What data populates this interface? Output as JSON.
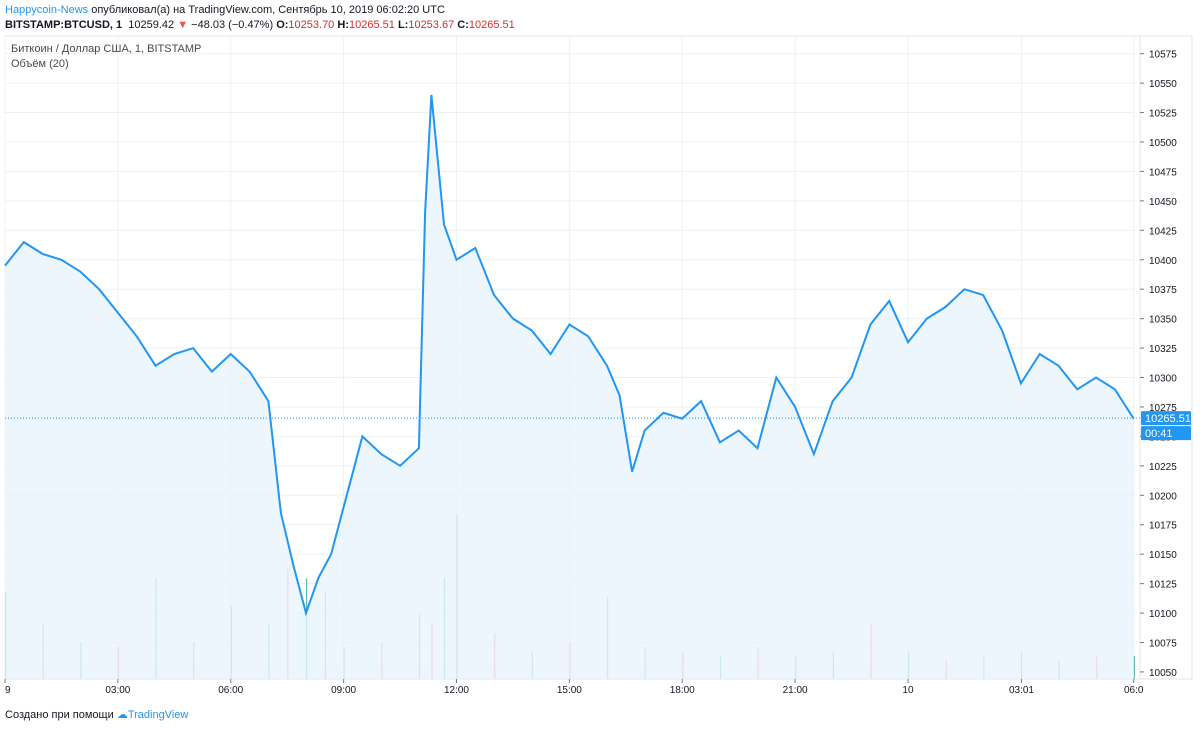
{
  "header": {
    "author": "Happycoin-News",
    "published_text": "опубликовал(а) на TradingView.com, Сентябрь 10, 2019 06:02:20 UTC",
    "symbol": "BITSTAMP:BTCUSD, 1",
    "last": "10259.42",
    "change": "−48.03 (−0.47%)",
    "o_label": "O:",
    "o_value": "10253.70",
    "h_label": "H:",
    "h_value": "10265.51",
    "l_label": "L:",
    "l_value": "10253.67",
    "c_label": "C:",
    "c_value": "10265.51"
  },
  "legend": {
    "series_title": "Биткоин / Доллар США, 1, BITSTAMP",
    "volume_title": "Объём (20)"
  },
  "footer": {
    "created_text": "Создано при помощи",
    "brand": "TradingView"
  },
  "colors": {
    "line": "#2196f3",
    "fill": "#e9f3fc",
    "vol_up": "#26a69a",
    "vol_down": "#ef5350",
    "grid": "#eef0f3"
  },
  "chart_data": {
    "type": "area",
    "title": "Биткоин / Доллар США, 1, BITSTAMP",
    "y_ticks": [
      10050,
      10075,
      10100,
      10125,
      10150,
      10175,
      10200,
      10225,
      10250,
      10275,
      10300,
      10325,
      10350,
      10375,
      10400,
      10425,
      10450,
      10475,
      10500,
      10525,
      10550,
      10575
    ],
    "ylim": [
      10044,
      10590
    ],
    "x_tick_labels": [
      "9",
      "03:00",
      "06:00",
      "09:00",
      "12:00",
      "15:00",
      "18:00",
      "21:00",
      "10",
      "03:01",
      "06:0"
    ],
    "current_price_label": "10265.51",
    "countdown_label": "00:41",
    "series": [
      {
        "x": [
          "9 00:00",
          "9 00:30",
          "9 01:00",
          "9 01:30",
          "9 02:00",
          "9 02:30",
          "9 03:00",
          "9 03:30",
          "9 04:00",
          "9 04:30",
          "9 05:00",
          "9 05:30",
          "9 06:00",
          "9 06:30",
          "9 07:00",
          "9 07:20",
          "9 07:40",
          "9 08:00",
          "9 08:20",
          "9 08:40",
          "9 09:00",
          "9 09:30",
          "9 10:00",
          "9 10:30",
          "9 11:00",
          "9 11:10",
          "9 11:20",
          "9 11:40",
          "9 12:00",
          "9 12:30",
          "9 13:00",
          "9 13:30",
          "9 14:00",
          "9 14:30",
          "9 15:00",
          "9 15:30",
          "9 16:00",
          "9 16:20",
          "9 16:40",
          "9 17:00",
          "9 17:30",
          "9 18:00",
          "9 18:30",
          "9 19:00",
          "9 19:30",
          "9 20:00",
          "9 20:30",
          "9 21:00",
          "9 21:30",
          "9 22:00",
          "9 22:30",
          "9 23:00",
          "9 23:30",
          "10 00:00",
          "10 00:30",
          "10 01:00",
          "10 01:30",
          "10 02:00",
          "10 02:30",
          "10 03:00",
          "10 03:30",
          "10 04:00",
          "10 04:30",
          "10 05:00",
          "10 05:30",
          "10 06:00"
        ],
        "values": [
          10395,
          10415,
          10405,
          10400,
          10390,
          10375,
          10355,
          10335,
          10310,
          10320,
          10325,
          10305,
          10320,
          10305,
          10280,
          10185,
          10140,
          10100,
          10130,
          10150,
          10190,
          10250,
          10235,
          10225,
          10240,
          10440,
          10540,
          10430,
          10400,
          10410,
          10370,
          10350,
          10340,
          10320,
          10345,
          10335,
          10310,
          10285,
          10220,
          10255,
          10270,
          10265,
          10280,
          10245,
          10255,
          10240,
          10300,
          10275,
          10235,
          10280,
          10300,
          10345,
          10365,
          10330,
          10350,
          10360,
          10375,
          10370,
          10340,
          10295,
          10320,
          10310,
          10290,
          10300,
          10290,
          10265
        ]
      }
    ],
    "volume": {
      "x": [
        "9 00:00",
        "9 01:00",
        "9 02:00",
        "9 03:00",
        "9 04:00",
        "9 05:00",
        "9 06:00",
        "9 07:00",
        "9 07:30",
        "9 08:00",
        "9 08:30",
        "9 09:00",
        "9 10:00",
        "9 11:00",
        "9 11:20",
        "9 11:40",
        "9 12:00",
        "9 13:00",
        "9 14:00",
        "9 15:00",
        "9 16:00",
        "9 17:00",
        "9 18:00",
        "9 19:00",
        "9 20:00",
        "9 21:00",
        "9 22:00",
        "9 23:00",
        "10 00:00",
        "10 01:00",
        "10 02:00",
        "10 03:00",
        "10 04:00",
        "10 05:00",
        "10 06:00"
      ],
      "values": [
        95,
        60,
        40,
        35,
        110,
        40,
        80,
        60,
        120,
        110,
        95,
        35,
        40,
        70,
        60,
        110,
        180,
        50,
        30,
        40,
        90,
        35,
        30,
        25,
        35,
        25,
        30,
        60,
        30,
        20,
        25,
        30,
        20,
        25,
        25
      ],
      "up": [
        true,
        false,
        true,
        false,
        true,
        false,
        false,
        true,
        false,
        true,
        false,
        true,
        false,
        true,
        false,
        true,
        true,
        false,
        true,
        false,
        false,
        true,
        false,
        true,
        false,
        true,
        true,
        false,
        true,
        false,
        true,
        false,
        true,
        false,
        true
      ]
    }
  }
}
